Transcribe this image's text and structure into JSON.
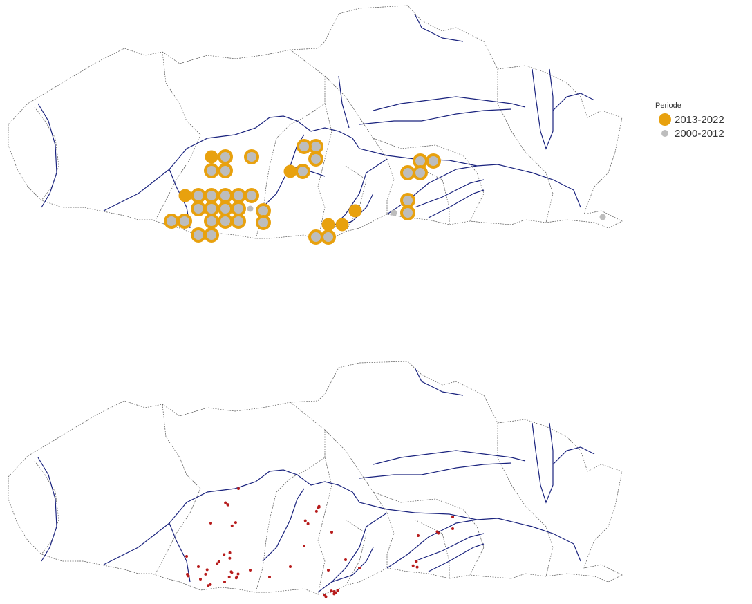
{
  "legend": {
    "title": "Periode",
    "items": [
      {
        "label": "2013-2022",
        "color": "#e8a10e"
      },
      {
        "label": "2000-2012",
        "color": "#bdbdbd"
      }
    ]
  },
  "colors": {
    "boundary": "#555555",
    "river": "#1a237e",
    "recent": "#e8a10e",
    "older": "#bdbdbd",
    "observation": "#b71c1c"
  }
}
